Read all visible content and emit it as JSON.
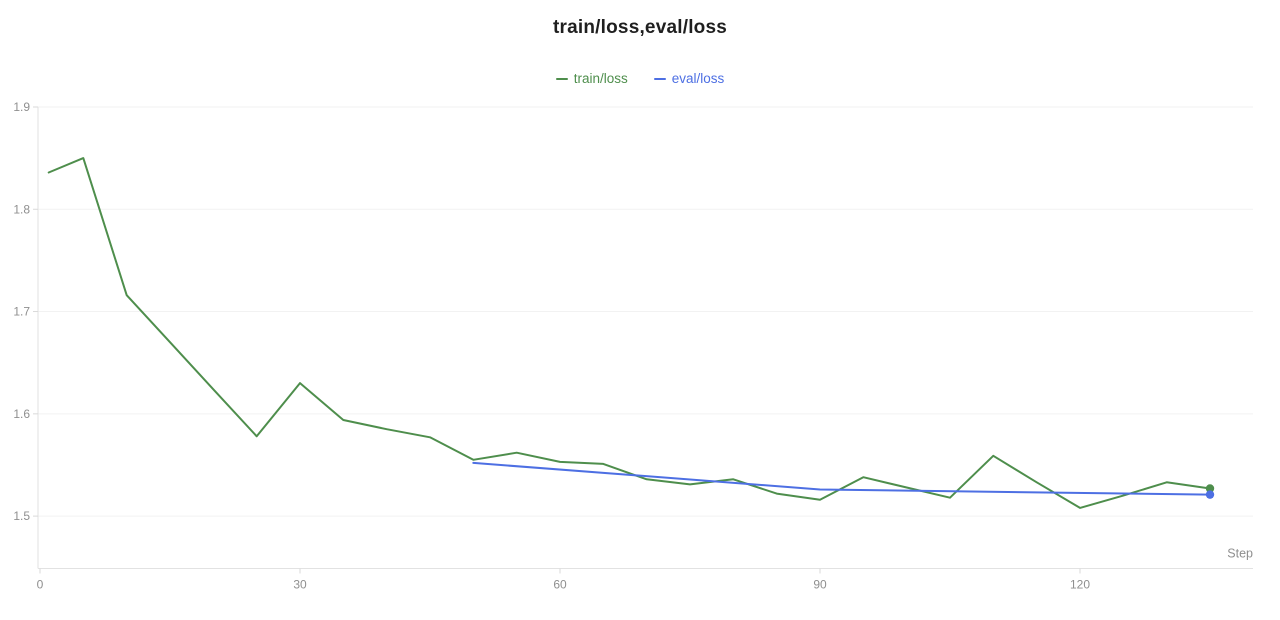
{
  "title": "train/loss,eval/loss",
  "chart_data": {
    "type": "line",
    "title": "train/loss,eval/loss",
    "xlabel": "Step",
    "ylabel": "",
    "x_ticks": [
      0,
      30,
      60,
      90,
      120
    ],
    "y_ticks": [
      1.9,
      1.8,
      1.7,
      1.6,
      1.5
    ],
    "x_range": [
      0,
      140
    ],
    "y_range": [
      1.449,
      1.9
    ],
    "grid": "horizontal",
    "legend_position": "top-center",
    "series": [
      {
        "name": "train/loss",
        "color": "#4e8e4c",
        "end_marker": true,
        "x": [
          1,
          5,
          10,
          15,
          20,
          25,
          30,
          35,
          40,
          45,
          50,
          55,
          60,
          65,
          70,
          75,
          80,
          85,
          90,
          95,
          100,
          105,
          110,
          115,
          120,
          125,
          130,
          135
        ],
        "y": [
          1.836,
          1.85,
          1.716,
          1.67,
          1.624,
          1.578,
          1.63,
          1.594,
          1.585,
          1.577,
          1.555,
          1.562,
          1.553,
          1.551,
          1.536,
          1.531,
          1.536,
          1.522,
          1.516,
          1.538,
          1.528,
          1.518,
          1.559,
          1.533,
          1.508,
          1.52,
          1.533,
          1.527
        ]
      },
      {
        "name": "eval/loss",
        "color": "#4d6fe3",
        "end_marker": true,
        "x": [
          50,
          90,
          135
        ],
        "y": [
          1.552,
          1.526,
          1.521
        ]
      }
    ]
  },
  "colors": {
    "title": "#1f1f1f",
    "grid": "#f2f2f2",
    "axis": "#e2e2e2",
    "tick": "#d9d9d9",
    "tick_label": "#8f8f8f"
  }
}
